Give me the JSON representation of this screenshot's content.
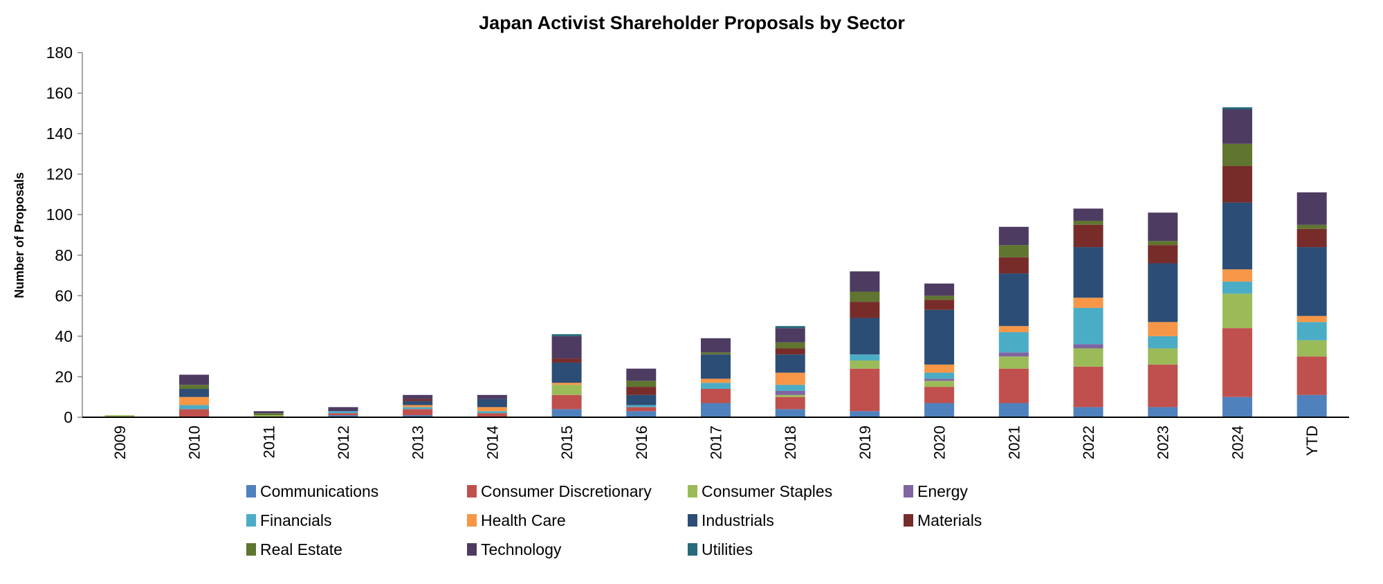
{
  "chart_data": {
    "type": "bar",
    "stacked": true,
    "title": "Japan Activist Shareholder Proposals by Sector",
    "xlabel": "",
    "ylabel": "Number of Proposals",
    "ylim": [
      0,
      180
    ],
    "yticks": [
      0,
      20,
      40,
      60,
      80,
      100,
      120,
      140,
      160,
      180
    ],
    "grid": false,
    "legend_placement": "bottom",
    "categories": [
      "2009",
      "2010",
      "2011",
      "2012",
      "2013",
      "2014",
      "2015",
      "2016",
      "2017",
      "2018",
      "2019",
      "2020",
      "2021",
      "2022",
      "2023",
      "2024",
      "YTD"
    ],
    "series": [
      {
        "name": "Communications",
        "color": "#4F81BD",
        "values": [
          0,
          0,
          0,
          1,
          1,
          0,
          4,
          3,
          7,
          4,
          3,
          7,
          7,
          5,
          5,
          10,
          11
        ]
      },
      {
        "name": "Consumer Discretionary",
        "color": "#C0504D",
        "values": [
          0,
          4,
          0,
          1,
          3,
          2,
          7,
          2,
          7,
          6,
          21,
          8,
          17,
          20,
          21,
          34,
          19
        ]
      },
      {
        "name": "Consumer Staples",
        "color": "#9BBB59",
        "values": [
          1,
          0,
          1,
          0,
          0,
          0,
          5,
          0,
          0,
          1,
          4,
          3,
          6,
          9,
          8,
          17,
          8
        ]
      },
      {
        "name": "Energy",
        "color": "#8064A2",
        "values": [
          0,
          0,
          0,
          0,
          0,
          0,
          0,
          0,
          0,
          2,
          0,
          1,
          2,
          2,
          0,
          0,
          0
        ]
      },
      {
        "name": "Financials",
        "color": "#4BACC6",
        "values": [
          0,
          2,
          0,
          1,
          1,
          1,
          0,
          1,
          3,
          3,
          3,
          3,
          10,
          18,
          6,
          6,
          9
        ]
      },
      {
        "name": "Health Care",
        "color": "#F79646",
        "values": [
          0,
          4,
          0,
          0,
          1,
          2,
          1,
          0,
          2,
          6,
          0,
          4,
          3,
          5,
          7,
          6,
          3
        ]
      },
      {
        "name": "Industrials",
        "color": "#2C4D75",
        "values": [
          0,
          4,
          0,
          0,
          2,
          4,
          10,
          5,
          12,
          9,
          18,
          27,
          26,
          25,
          29,
          33,
          34
        ]
      },
      {
        "name": "Materials",
        "color": "#772C2A",
        "values": [
          0,
          0,
          0,
          0,
          1,
          0,
          2,
          4,
          0,
          3,
          8,
          5,
          8,
          11,
          9,
          18,
          9
        ]
      },
      {
        "name": "Real Estate",
        "color": "#5F7530",
        "values": [
          0,
          2,
          1,
          0,
          0,
          0,
          0,
          3,
          1,
          3,
          5,
          2,
          6,
          2,
          2,
          11,
          2
        ]
      },
      {
        "name": "Technology",
        "color": "#4D3B62",
        "values": [
          0,
          5,
          1,
          2,
          2,
          2,
          11,
          6,
          7,
          7,
          10,
          6,
          9,
          6,
          14,
          17,
          16
        ]
      },
      {
        "name": "Utilities",
        "color": "#276A7C",
        "values": [
          0,
          0,
          0,
          0,
          0,
          0,
          1,
          0,
          0,
          1,
          0,
          0,
          0,
          0,
          0,
          1,
          0
        ]
      }
    ]
  }
}
